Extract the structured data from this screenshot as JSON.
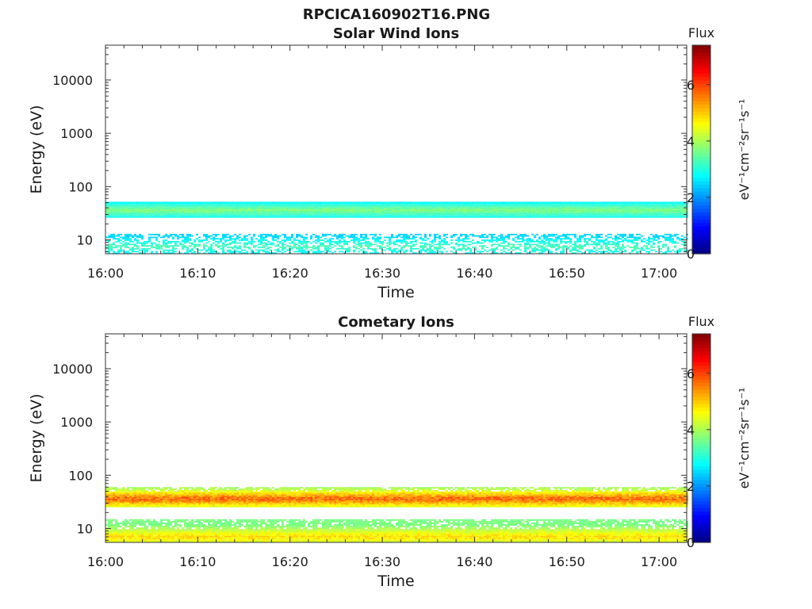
{
  "page_title": "RPCICA160902T16.PNG",
  "chart_data": [
    {
      "type": "heatmap",
      "title": "Solar Wind Ions",
      "xlabel": "Time",
      "ylabel": "Energy (eV)",
      "yscale": "log",
      "ylim": [
        5.5,
        45000
      ],
      "xlim": [
        "16:00",
        "17:03"
      ],
      "x_ticks": [
        "16:00",
        "16:10",
        "16:20",
        "16:30",
        "16:40",
        "16:50",
        "17:00"
      ],
      "y_ticks": [
        "10",
        "100",
        "1000",
        "10000"
      ],
      "colorbar": {
        "label": "Flux",
        "unit_label": "eV⁻¹cm⁻²sr⁻¹s⁻¹",
        "range": [
          0,
          7.4
        ],
        "ticks": [
          "0",
          "2",
          "4",
          "6"
        ],
        "colormap": "jet"
      },
      "bands": [
        {
          "energy_range_eV": [
            26,
            52
          ],
          "peak_eV": 36,
          "flux_range": [
            2.2,
            3.8
          ]
        },
        {
          "energy_range_eV": [
            5.5,
            13
          ],
          "peak_eV": 7.5,
          "flux_range": [
            2.0,
            3.4
          ],
          "sparse": true
        }
      ]
    },
    {
      "type": "heatmap",
      "title": "Cometary Ions",
      "xlabel": "Time",
      "ylabel": "Energy (eV)",
      "yscale": "log",
      "ylim": [
        5.5,
        45000
      ],
      "xlim": [
        "16:00",
        "17:03"
      ],
      "x_ticks": [
        "16:00",
        "16:10",
        "16:20",
        "16:30",
        "16:40",
        "16:50",
        "17:00"
      ],
      "y_ticks": [
        "10",
        "100",
        "1000",
        "10000"
      ],
      "colorbar": {
        "label": "Flux",
        "unit_label": "eV⁻¹cm⁻²sr⁻¹s⁻¹",
        "range": [
          0,
          7.4
        ],
        "ticks": [
          "0",
          "2",
          "4",
          "6"
        ],
        "colormap": "jet"
      },
      "bands": [
        {
          "energy_range_eV": [
            25,
            60
          ],
          "peak_eV": 36,
          "flux_range": [
            3.0,
            6.0
          ]
        },
        {
          "energy_range_eV": [
            5.5,
            15
          ],
          "peak_eV": 7,
          "flux_range": [
            3.0,
            5.0
          ]
        }
      ]
    }
  ]
}
